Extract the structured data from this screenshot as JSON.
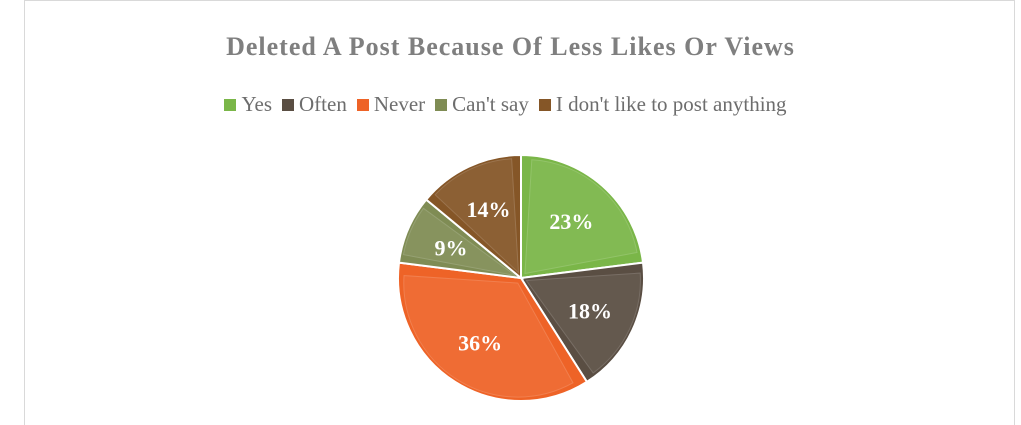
{
  "chart_data": {
    "type": "pie",
    "title": "Deleted A Post Because Of Less Likes Or Views",
    "legend_position": "top",
    "categories": [
      "Yes",
      "Often",
      "Never",
      "Can't say",
      "I don't like to post anything"
    ],
    "values": [
      23,
      18,
      36,
      9,
      14
    ],
    "data_labels": [
      "23%",
      "18%",
      "36%",
      "9%",
      "14%"
    ],
    "colors": [
      "#7ab648",
      "#5a4e43",
      "#ee6327",
      "#7f8c54",
      "#855627"
    ]
  }
}
